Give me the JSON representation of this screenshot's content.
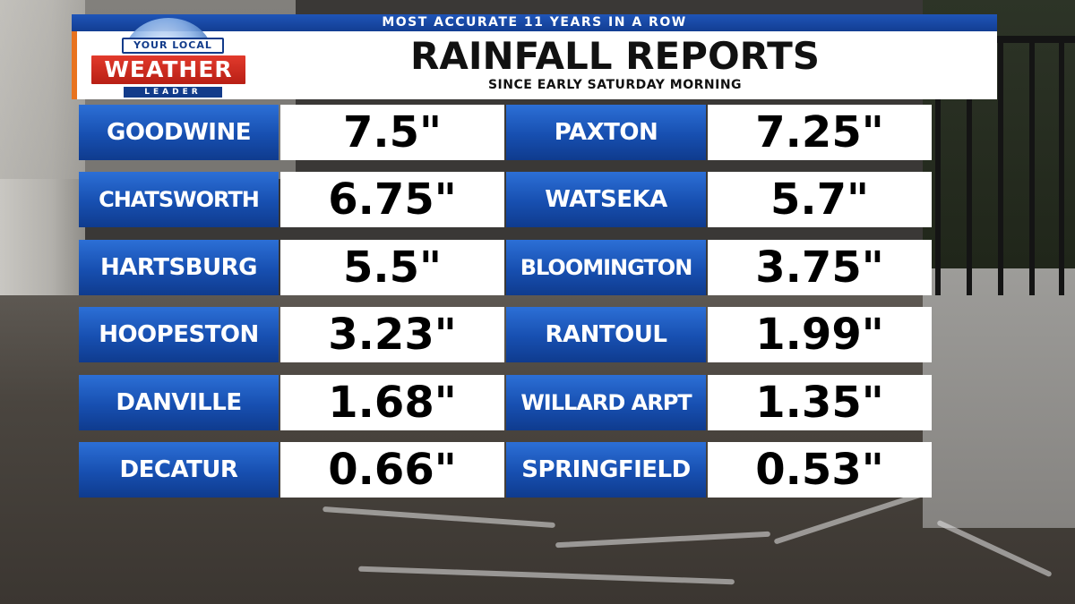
{
  "header": {
    "banner": "MOST ACCURATE 11 YEARS IN A ROW",
    "title": "RAINFALL REPORTS",
    "subtitle": "SINCE EARLY SATURDAY MORNING"
  },
  "logo": {
    "line1": "YOUR LOCAL",
    "line2": "WEATHER",
    "line3": "LEADER"
  },
  "rows": [
    {
      "left_name": "GOODWINE",
      "left_value": "7.5\"",
      "right_name": "PAXTON",
      "right_value": "7.25\""
    },
    {
      "left_name": "CHATSWORTH",
      "left_value": "6.75\"",
      "right_name": "WATSEKA",
      "right_value": "5.7\""
    },
    {
      "left_name": "HARTSBURG",
      "left_value": "5.5\"",
      "right_name": "BLOOMINGTON",
      "right_value": "3.75\""
    },
    {
      "left_name": "HOOPESTON",
      "left_value": "3.23\"",
      "right_name": "RANTOUL",
      "right_value": "1.99\""
    },
    {
      "left_name": "DANVILLE",
      "left_value": "1.68\"",
      "right_name": "WILLARD ARPT",
      "right_value": "1.35\""
    },
    {
      "left_name": "DECATUR",
      "left_value": "0.66\"",
      "right_name": "SPRINGFIELD",
      "right_value": "0.53\""
    }
  ],
  "colors": {
    "banner_blue": "#1a4aa6",
    "name_cell_blue": "#174fb0",
    "accent_orange": "#e8731f",
    "logo_red": "#d02d22"
  }
}
